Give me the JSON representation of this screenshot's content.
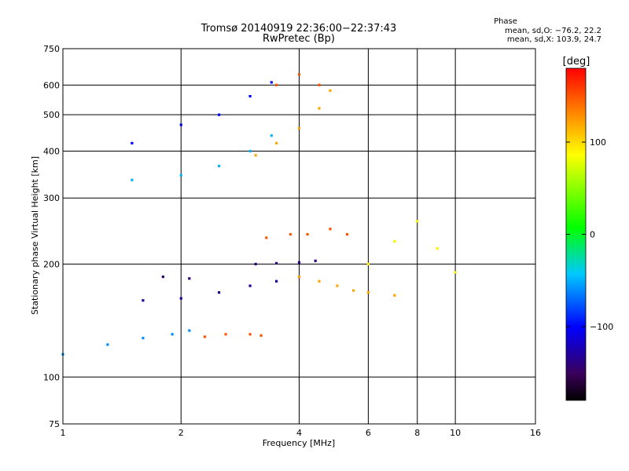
{
  "chart_data": {
    "type": "scatter",
    "title": "Tromsø 20140919 22:36:00−22:37:43",
    "subtitle": "RwPretec (Bp)",
    "xlabel": "Frequency [MHz]",
    "ylabel": "Stationary phase Virtual Height [km]",
    "x_scale": "log",
    "y_scale": "log",
    "xlim": [
      1,
      16
    ],
    "ylim": [
      75,
      750
    ],
    "grid": true,
    "x_ticks": [
      1,
      2,
      4,
      6,
      8,
      10,
      16
    ],
    "x_tick_labels": [
      "1",
      "2",
      "4",
      "6",
      "8",
      "10",
      "16"
    ],
    "y_ticks": [
      75,
      100,
      200,
      300,
      400,
      500,
      600,
      750
    ],
    "y_tick_labels": [
      "75",
      "100",
      "200",
      "300",
      "400",
      "500",
      "600",
      "750"
    ],
    "color_variable": "phase [deg]",
    "colorbar": {
      "label": "[deg]",
      "range": [
        -180,
        180
      ],
      "ticks": [
        100,
        0,
        -100
      ],
      "tick_labels": [
        "100",
        "0",
        "−100"
      ],
      "colormap": "rainbow"
    },
    "phase_info": {
      "title": "Phase",
      "line1": "mean, sd,O: −76.2, 22.2",
      "line2": "mean, sd,X: 103.9, 24.7"
    },
    "series": [
      {
        "x": [
          1.5,
          2.0,
          2.5,
          3.0,
          3.4
        ],
        "y": [
          335,
          345,
          365,
          400,
          440
        ],
        "phase": -50
      },
      {
        "x": [
          1.5,
          2.0,
          2.5,
          3.0,
          3.4
        ],
        "y": [
          420,
          470,
          500,
          560,
          610
        ],
        "phase": -100
      },
      {
        "x": [
          3.1,
          3.5,
          4.0,
          4.5,
          4.8
        ],
        "y": [
          390,
          420,
          460,
          520,
          580
        ],
        "phase": 120
      },
      {
        "x": [
          3.5,
          4.0,
          4.5
        ],
        "y": [
          600,
          640,
          600
        ],
        "phase": 150
      },
      {
        "x": [
          1.0,
          1.3,
          1.6,
          1.9,
          2.1
        ],
        "y": [
          115,
          122,
          127,
          130,
          133
        ],
        "phase": -60
      },
      {
        "x": [
          1.6,
          2.0,
          2.5,
          3.0,
          3.5,
          4.0
        ],
        "y": [
          160,
          162,
          168,
          175,
          180,
          185
        ],
        "phase": -130
      },
      {
        "x": [
          1.8,
          2.1
        ],
        "y": [
          185,
          183
        ],
        "phase": -140
      },
      {
        "x": [
          3.1,
          3.5,
          4.0,
          4.4
        ],
        "y": [
          200,
          201,
          202,
          204
        ],
        "phase": -140
      },
      {
        "x": [
          2.3,
          2.6,
          3.0,
          3.2
        ],
        "y": [
          128,
          130,
          130,
          129
        ],
        "phase": 150
      },
      {
        "x": [
          3.3,
          3.8,
          4.2,
          4.8,
          5.3
        ],
        "y": [
          235,
          240,
          240,
          248,
          240
        ],
        "phase": 150
      },
      {
        "x": [
          4.0,
          4.5,
          5.0,
          5.5,
          6.0,
          7.0
        ],
        "y": [
          185,
          180,
          175,
          170,
          168,
          165
        ],
        "phase": 120
      },
      {
        "x": [
          6.0,
          7.0,
          8.0,
          9.0,
          10.0
        ],
        "y": [
          200,
          230,
          260,
          220,
          190
        ],
        "phase": 90
      }
    ]
  }
}
